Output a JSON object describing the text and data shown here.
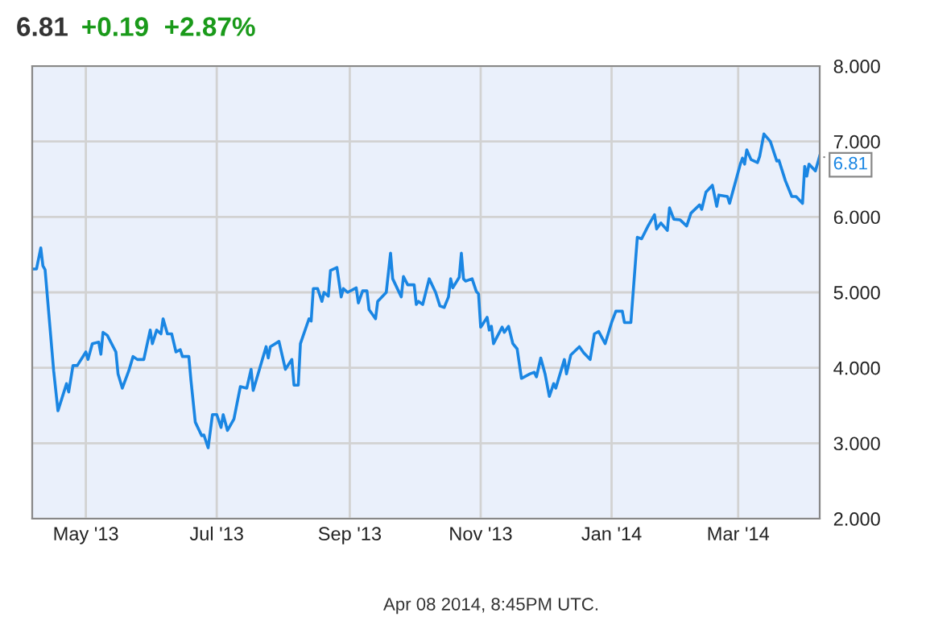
{
  "chart_data": {
    "type": "line",
    "title": "6.81",
    "subtitle": "+0.19  +2.87%",
    "annotations": [
      {
        "text": "6.81",
        "x": "2014-04-08",
        "y": 6.81
      },
      "Apr 08 2014, 8:45PM UTC."
    ],
    "xlim": [
      "2013-04-06",
      "2014-04-08"
    ],
    "xticks": [
      {
        "value": "2013-05-01",
        "label": "May '13"
      },
      {
        "value": "2013-07-01",
        "label": "Jul '13"
      },
      {
        "value": "2013-09-01",
        "label": "Sep '13"
      },
      {
        "value": "2013-11-01",
        "label": "Nov '13"
      },
      {
        "value": "2014-01-01",
        "label": "Jan '14"
      },
      {
        "value": "2014-03-01",
        "label": "Mar '14"
      }
    ],
    "ylim": [
      2,
      8
    ],
    "yticks": [
      {
        "value": 2,
        "label": "2.000"
      },
      {
        "value": 3,
        "label": "3.000"
      },
      {
        "value": 4,
        "label": "4.000"
      },
      {
        "value": 5,
        "label": "5.000"
      },
      {
        "value": 6,
        "label": "6.000"
      },
      {
        "value": 7,
        "label": "7.000"
      },
      {
        "value": 8,
        "label": "8.000"
      }
    ],
    "grid": true,
    "marker": "none",
    "line_style": "solid",
    "series": [
      {
        "color": "#1a86e3",
        "x": [
          "2013-04-06",
          "2013-04-08",
          "2013-04-10",
          "2013-04-11",
          "2013-04-12",
          "2013-04-16",
          "2013-04-18",
          "2013-04-22",
          "2013-04-23",
          "2013-04-25",
          "2013-04-27",
          "2013-05-01",
          "2013-05-02",
          "2013-05-04",
          "2013-05-07",
          "2013-05-08",
          "2013-05-09",
          "2013-05-11",
          "2013-05-15",
          "2013-05-16",
          "2013-05-18",
          "2013-05-21",
          "2013-05-23",
          "2013-05-25",
          "2013-05-28",
          "2013-05-31",
          "2013-06-01",
          "2013-06-03",
          "2013-06-05",
          "2013-06-06",
          "2013-06-08",
          "2013-06-10",
          "2013-06-12",
          "2013-06-14",
          "2013-06-15",
          "2013-06-18",
          "2013-06-19",
          "2013-06-21",
          "2013-06-24",
          "2013-06-25",
          "2013-06-27",
          "2013-06-29",
          "2013-07-01",
          "2013-07-03",
          "2013-07-04",
          "2013-07-06",
          "2013-07-09",
          "2013-07-12",
          "2013-07-15",
          "2013-07-17",
          "2013-07-18",
          "2013-07-24",
          "2013-07-25",
          "2013-07-26",
          "2013-07-30",
          "2013-08-02",
          "2013-08-05",
          "2013-08-06",
          "2013-08-08",
          "2013-08-09",
          "2013-08-13",
          "2013-08-14",
          "2013-08-15",
          "2013-08-17",
          "2013-08-19",
          "2013-08-20",
          "2013-08-22",
          "2013-08-23",
          "2013-08-26",
          "2013-08-28",
          "2013-08-29",
          "2013-08-31",
          "2013-09-04",
          "2013-09-05",
          "2013-09-07",
          "2013-09-09",
          "2013-09-10",
          "2013-09-13",
          "2013-09-14",
          "2013-09-18",
          "2013-09-20",
          "2013-09-21",
          "2013-09-25",
          "2013-09-26",
          "2013-09-28",
          "2013-10-01",
          "2013-10-02",
          "2013-10-03",
          "2013-10-05",
          "2013-10-08",
          "2013-10-11",
          "2013-10-13",
          "2013-10-15",
          "2013-10-17",
          "2013-10-18",
          "2013-10-19",
          "2013-10-22",
          "2013-10-23",
          "2013-10-24",
          "2013-10-25",
          "2013-10-28",
          "2013-10-30",
          "2013-10-31",
          "2013-11-01",
          "2013-11-02",
          "2013-11-04",
          "2013-11-05",
          "2013-11-06",
          "2013-11-07",
          "2013-11-11",
          "2013-11-12",
          "2013-11-14",
          "2013-11-16",
          "2013-11-18",
          "2013-11-20",
          "2013-11-24",
          "2013-11-26",
          "2013-11-27",
          "2013-11-29",
          "2013-12-01",
          "2013-12-03",
          "2013-12-05",
          "2013-12-06",
          "2013-12-10",
          "2013-12-11",
          "2013-12-13",
          "2013-12-17",
          "2013-12-19",
          "2013-12-22",
          "2013-12-24",
          "2013-12-26",
          "2013-12-29",
          "2014-01-01",
          "2014-01-03",
          "2014-01-06",
          "2014-01-07",
          "2014-01-10",
          "2014-01-13",
          "2014-01-15",
          "2014-01-18",
          "2014-01-21",
          "2014-01-22",
          "2014-01-24",
          "2014-01-27",
          "2014-01-28",
          "2014-01-30",
          "2014-02-02",
          "2014-02-05",
          "2014-02-07",
          "2014-02-11",
          "2014-02-12",
          "2014-02-14",
          "2014-02-17",
          "2014-02-19",
          "2014-02-20",
          "2014-02-24",
          "2014-02-25",
          "2014-03-02",
          "2014-03-03",
          "2014-03-04",
          "2014-03-05",
          "2014-03-07",
          "2014-03-10",
          "2014-03-11",
          "2014-03-13",
          "2014-03-16",
          "2014-03-19",
          "2014-03-20",
          "2014-03-23",
          "2014-03-26",
          "2014-03-28",
          "2014-03-31",
          "2014-04-01",
          "2014-04-02",
          "2014-04-03",
          "2014-04-06",
          "2014-04-08"
        ],
        "values": [
          5.31,
          5.31,
          5.59,
          5.35,
          5.3,
          3.96,
          3.43,
          3.79,
          3.68,
          4.03,
          4.03,
          4.21,
          4.11,
          4.32,
          4.34,
          4.18,
          4.47,
          4.43,
          4.21,
          3.92,
          3.73,
          3.96,
          4.15,
          4.11,
          4.11,
          4.5,
          4.32,
          4.5,
          4.45,
          4.65,
          4.45,
          4.45,
          4.21,
          4.24,
          4.15,
          4.15,
          3.83,
          3.28,
          3.1,
          3.11,
          2.94,
          3.38,
          3.38,
          3.21,
          3.38,
          3.17,
          3.32,
          3.75,
          3.73,
          3.98,
          3.7,
          4.28,
          4.13,
          4.28,
          4.35,
          3.98,
          4.11,
          3.77,
          3.77,
          4.32,
          4.65,
          4.62,
          5.05,
          5.05,
          4.88,
          5.0,
          4.95,
          5.29,
          5.33,
          4.94,
          5.05,
          5.0,
          5.06,
          4.86,
          5.02,
          5.02,
          4.77,
          4.65,
          4.88,
          5.0,
          5.52,
          5.18,
          4.94,
          5.21,
          5.1,
          5.1,
          4.84,
          4.88,
          4.84,
          5.18,
          5.0,
          4.82,
          4.8,
          4.94,
          5.18,
          5.06,
          5.2,
          5.52,
          5.18,
          5.15,
          5.18,
          5.01,
          4.98,
          4.54,
          4.58,
          4.67,
          4.5,
          4.55,
          4.32,
          4.54,
          4.47,
          4.55,
          4.32,
          4.25,
          3.86,
          3.92,
          3.94,
          3.88,
          4.13,
          3.92,
          3.62,
          3.79,
          3.73,
          4.11,
          3.92,
          4.17,
          4.28,
          4.2,
          4.11,
          4.45,
          4.48,
          4.32,
          4.6,
          4.75,
          4.75,
          4.6,
          4.6,
          5.73,
          5.71,
          5.88,
          6.03,
          5.84,
          5.92,
          5.82,
          6.12,
          5.97,
          5.96,
          5.88,
          6.05,
          6.16,
          6.1,
          6.33,
          6.42,
          6.14,
          6.29,
          6.27,
          6.18,
          6.7,
          6.78,
          6.7,
          6.89,
          6.76,
          6.72,
          6.8,
          7.1,
          7.0,
          6.74,
          6.75,
          6.48,
          6.27,
          6.27,
          6.18,
          6.67,
          6.54,
          6.7,
          6.61,
          6.81
        ]
      }
    ]
  }
}
